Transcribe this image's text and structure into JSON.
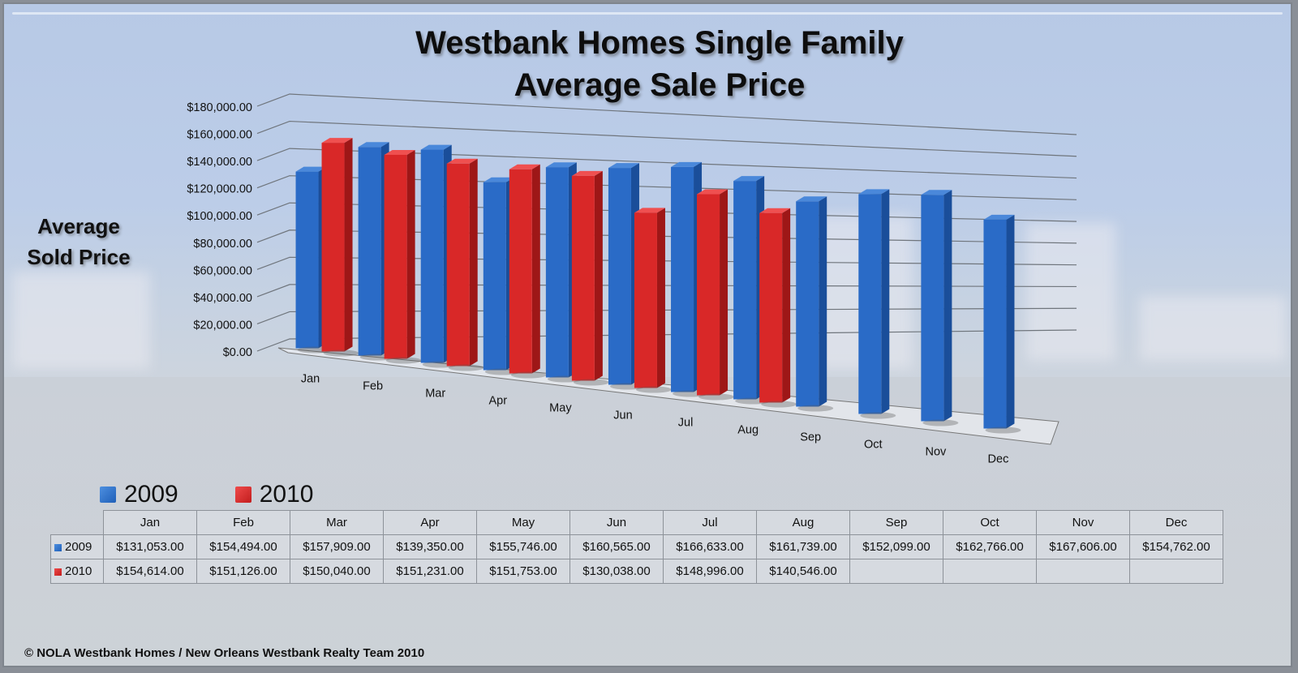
{
  "title": {
    "line1": "Westbank Homes Single Family",
    "line2": "Average Sale Price"
  },
  "y_axis_title": {
    "line1": "Average",
    "line2": "Sold Price"
  },
  "colors": {
    "series_2009": "#2a6bc7",
    "series_2010": "#d92828"
  },
  "legend": [
    {
      "label": "2009",
      "color": "#2a6bc7"
    },
    {
      "label": "2010",
      "color": "#d92828"
    }
  ],
  "table": {
    "columns": [
      "Jan",
      "Feb",
      "Mar",
      "Apr",
      "May",
      "Jun",
      "Jul",
      "Aug",
      "Sep",
      "Oct",
      "Nov",
      "Dec"
    ],
    "rows": [
      {
        "label": "2009",
        "values": [
          "$131,053.00",
          "$154,494.00",
          "$157,909.00",
          "$139,350.00",
          "$155,746.00",
          "$160,565.00",
          "$166,633.00",
          "$161,739.00",
          "$152,099.00",
          "$162,766.00",
          "$167,606.00",
          "$154,762.00"
        ]
      },
      {
        "label": "2010",
        "values": [
          "$154,614.00",
          "$151,126.00",
          "$150,040.00",
          "$151,231.00",
          "$151,753.00",
          "$130,038.00",
          "$148,996.00",
          "$140,546.00",
          "",
          "",
          "",
          ""
        ]
      }
    ]
  },
  "footer": "© NOLA Westbank Homes / New Orleans Westbank Realty Team 2010",
  "chart_data": {
    "type": "bar",
    "subtype": "3d-clustered-column",
    "title": "Westbank Homes Single Family Average Sale Price",
    "xlabel": "",
    "ylabel": "Average Sold Price",
    "categories": [
      "Jan",
      "Feb",
      "Mar",
      "Apr",
      "May",
      "Jun",
      "Jul",
      "Aug",
      "Sep",
      "Oct",
      "Nov",
      "Dec"
    ],
    "series": [
      {
        "name": "2009",
        "color": "#2a6bc7",
        "values": [
          131053,
          154494,
          157909,
          139350,
          155746,
          160565,
          166633,
          161739,
          152099,
          162766,
          167606,
          154762
        ]
      },
      {
        "name": "2010",
        "color": "#d92828",
        "values": [
          154614,
          151126,
          150040,
          151231,
          151753,
          130038,
          148996,
          140546,
          null,
          null,
          null,
          null
        ]
      }
    ],
    "ylim": [
      0,
      180000
    ],
    "yticks": [
      0,
      20000,
      40000,
      60000,
      80000,
      100000,
      120000,
      140000,
      160000,
      180000
    ],
    "ytick_labels": [
      "$0.00",
      "$20,000.00",
      "$40,000.00",
      "$60,000.00",
      "$80,000.00",
      "$100,000.00",
      "$120,000.00",
      "$140,000.00",
      "$160,000.00",
      "$180,000.00"
    ],
    "grid": true,
    "legend_position": "bottom-left",
    "data_table": true
  }
}
